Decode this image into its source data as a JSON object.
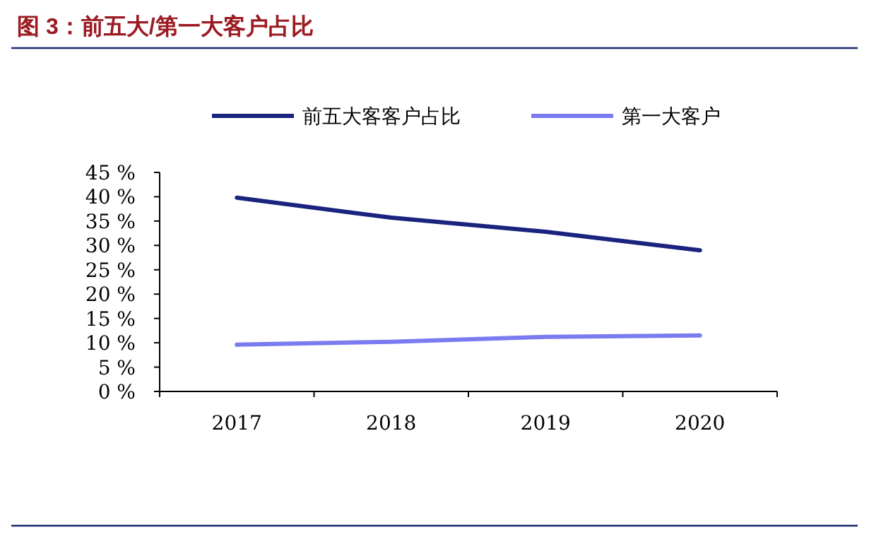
{
  "chart_data": {
    "type": "line",
    "title": "图 3：前五大/第一大客户占比",
    "categories": [
      "2017",
      "2018",
      "2019",
      "2020"
    ],
    "series": [
      {
        "name": "前五大客客户占比",
        "color": "#1a237e",
        "values": [
          39.8,
          35.7,
          32.8,
          29.0
        ]
      },
      {
        "name": "第一大客户",
        "color": "#7b7bf0",
        "values": [
          9.6,
          10.2,
          11.2,
          11.5
        ]
      }
    ],
    "ylim": [
      0,
      45
    ],
    "yticks": [
      {
        "value": 0,
        "label": "0 %"
      },
      {
        "value": 5,
        "label": "5 %"
      },
      {
        "value": 10,
        "label": "10 %"
      },
      {
        "value": 15,
        "label": "15 %"
      },
      {
        "value": 20,
        "label": "20 %"
      },
      {
        "value": 25,
        "label": "25 %"
      },
      {
        "value": 30,
        "label": "30 %"
      },
      {
        "value": 35,
        "label": "35 %"
      },
      {
        "value": 40,
        "label": "40 %"
      },
      {
        "value": 45,
        "label": "45 %"
      }
    ],
    "legend": "top",
    "grid": false,
    "marker": "none",
    "line_style": "solid"
  }
}
